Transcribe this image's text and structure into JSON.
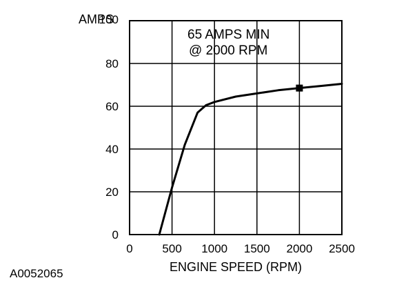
{
  "chart_data": {
    "type": "line",
    "ylabel_line1": "AMPS",
    "xlabel": "ENGINE SPEED (RPM)",
    "annotation_line1": "65 AMPS MIN",
    "annotation_line2": "@ 2000 RPM",
    "figure_id": "A0052065",
    "xlim": [
      0,
      2500
    ],
    "ylim": [
      0,
      100
    ],
    "x_ticks": [
      0,
      500,
      1000,
      1500,
      2000,
      2500
    ],
    "y_ticks": [
      0,
      20,
      40,
      60,
      80,
      100
    ],
    "grid": true,
    "series": [
      {
        "x": [
          350,
          500,
          650,
          800,
          900,
          1000,
          1250,
          1500,
          1750,
          2000,
          2250,
          2500
        ],
        "y": [
          0,
          22,
          42,
          57,
          60.5,
          62,
          64.5,
          66,
          67.5,
          68.5,
          69.5,
          70.5
        ]
      }
    ],
    "marker": {
      "x": 2000,
      "y": 68.5
    }
  }
}
